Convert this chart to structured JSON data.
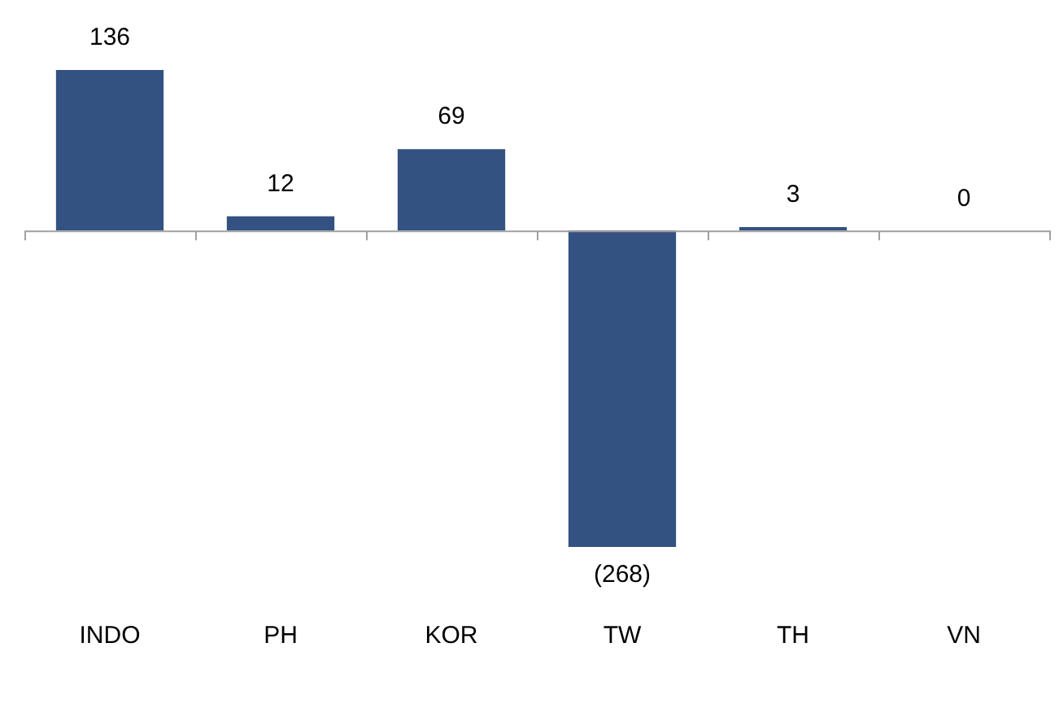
{
  "chart_data": {
    "type": "bar",
    "categories": [
      "INDO",
      "PH",
      "KOR",
      "TW",
      "TH",
      "VN"
    ],
    "values": [
      136,
      12,
      69,
      -268,
      3,
      0
    ],
    "value_labels": [
      "136",
      "12",
      "69",
      "(268)",
      "3",
      "0"
    ],
    "color": "#335282",
    "grid": false,
    "legend": false
  }
}
